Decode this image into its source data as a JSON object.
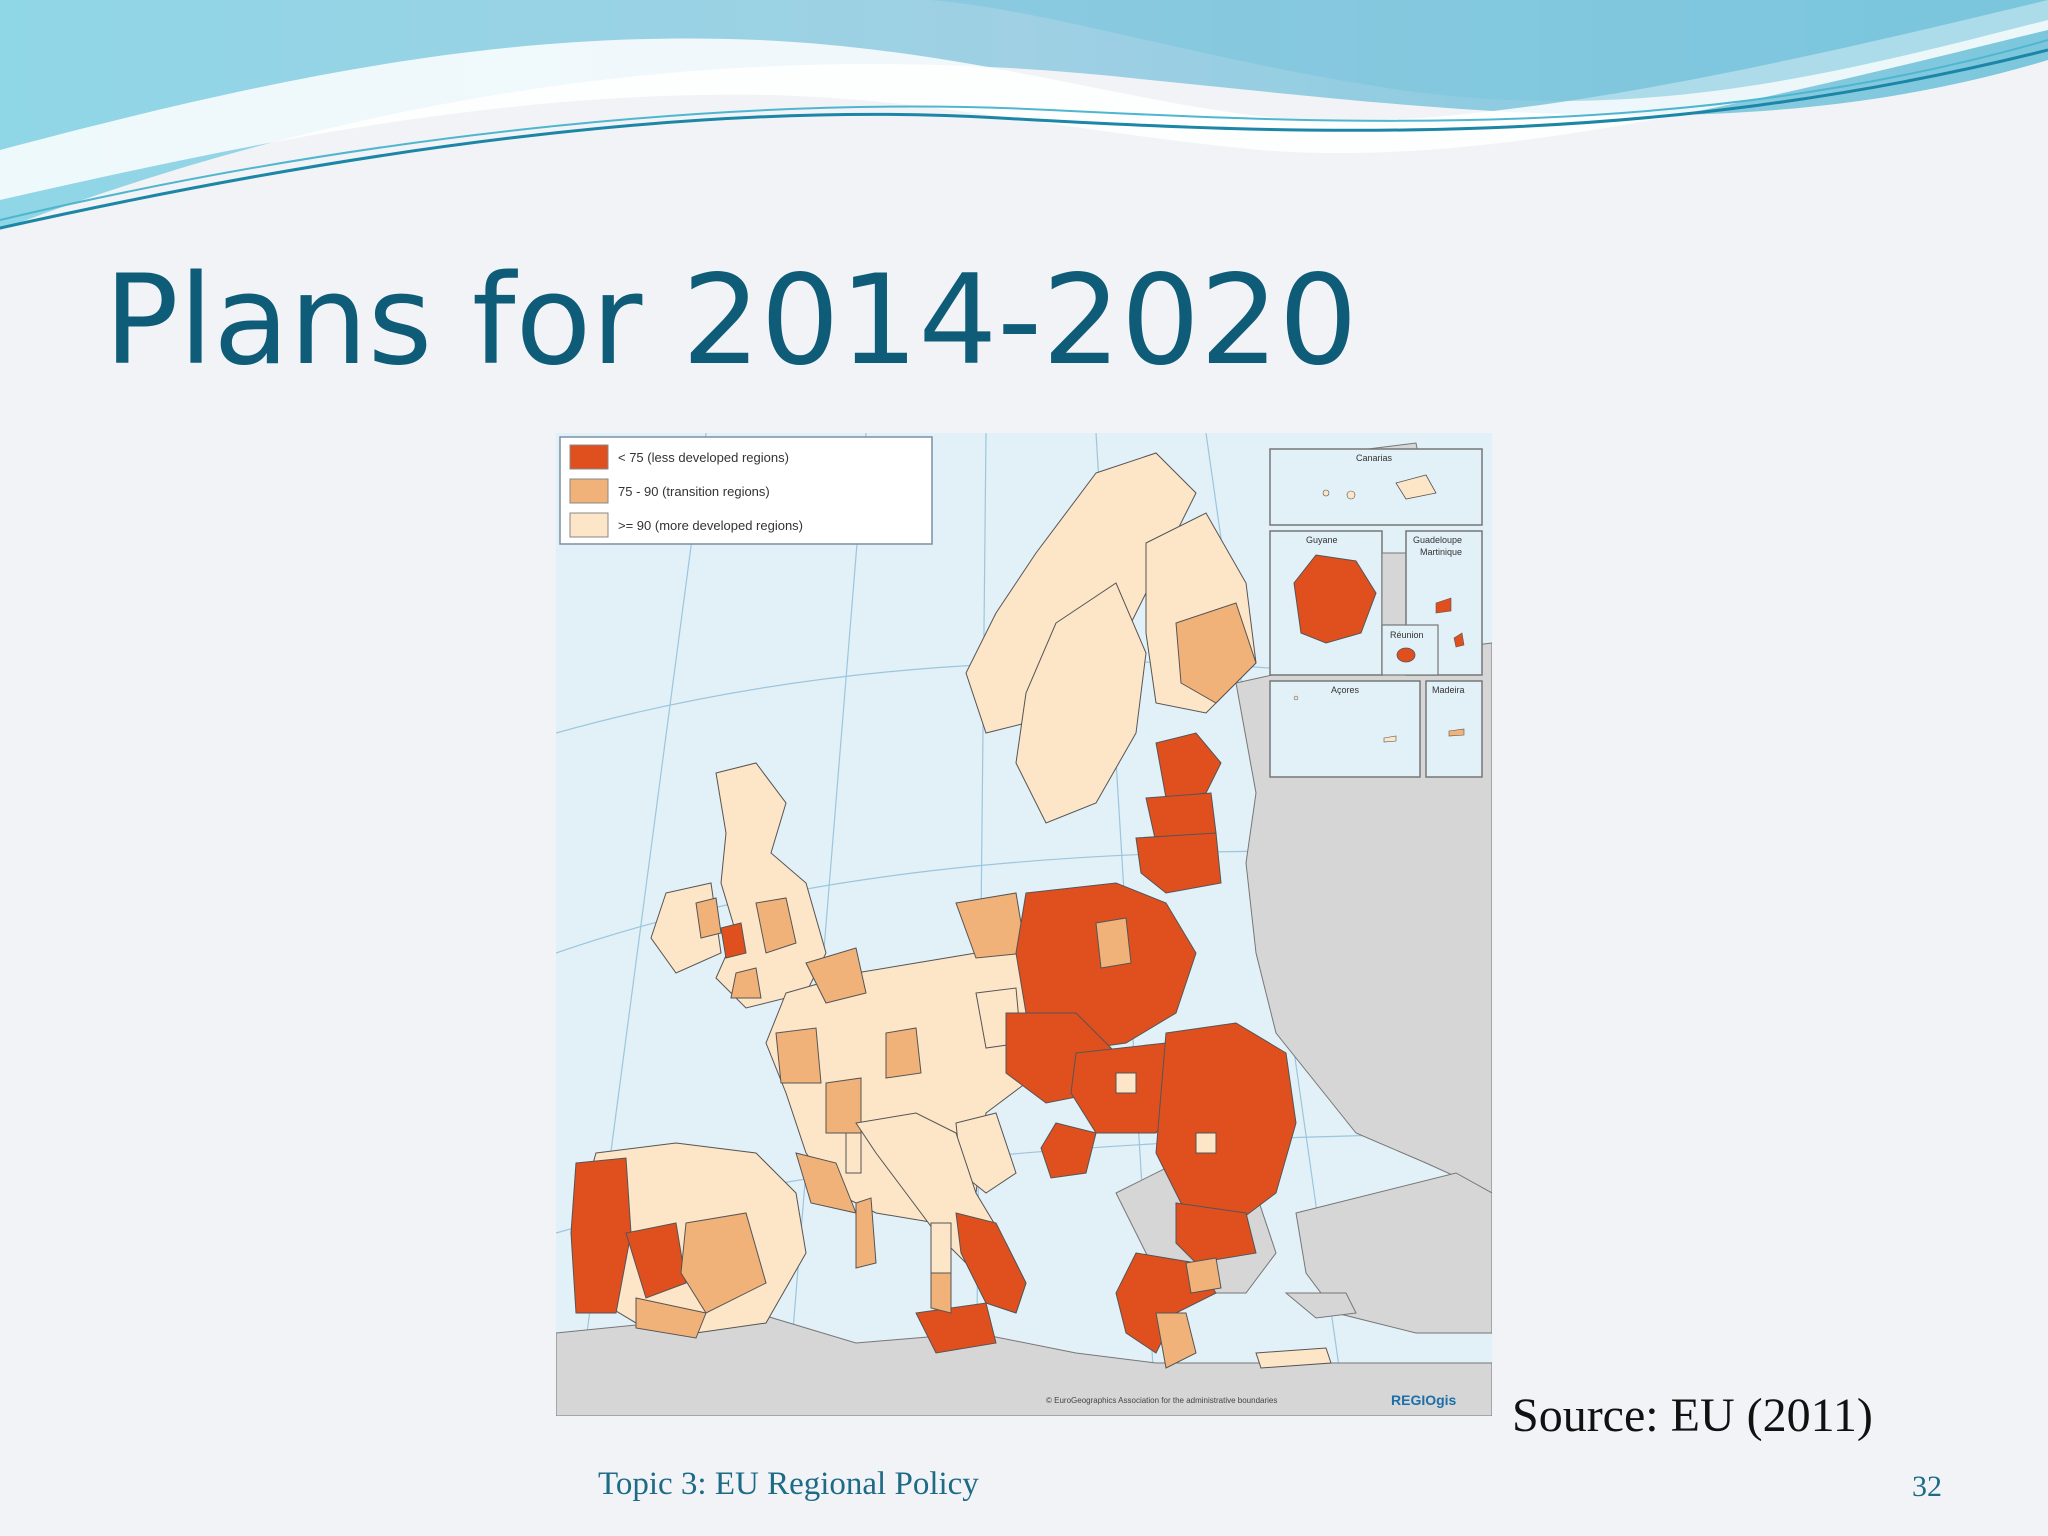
{
  "slide": {
    "title": "Plans for 2014-2020",
    "source": "Source: EU (2011)",
    "footer": "Topic 3: EU Regional Policy",
    "page_number": "32"
  },
  "map": {
    "legend": [
      {
        "label": "< 75 (less developed regions)",
        "color": "#e0501e"
      },
      {
        "label": "75 - 90 (transition regions)",
        "color": "#f1b27a"
      },
      {
        "label": ">= 90 (more developed regions)",
        "color": "#fde5c8"
      }
    ],
    "insets": {
      "canarias": "Canarias",
      "guyane": "Guyane",
      "guadeloupe": "Guadeloupe",
      "martinique": "Martinique",
      "reunion": "Réunion",
      "acores": "Açores",
      "madeira": "Madeira"
    },
    "credit": "© EuroGeographics Association for the administrative boundaries",
    "logo": "REGIOgis",
    "colors": {
      "sea": "#e2f0f8",
      "non_eu": "#d6d6d6",
      "border": "#555555",
      "coast": "#2c6fb0"
    }
  }
}
